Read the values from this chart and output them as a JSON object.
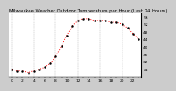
{
  "title": "Milwaukee Weather Outdoor Temperature per Hour (Last 24 Hours)",
  "temperatures": [
    28,
    27,
    27,
    26,
    27,
    28,
    29,
    31,
    35,
    40,
    46,
    51,
    54,
    55,
    55,
    54,
    54,
    54,
    53,
    53,
    52,
    50,
    47,
    44
  ],
  "hours": [
    0,
    1,
    2,
    3,
    4,
    5,
    6,
    7,
    8,
    9,
    10,
    11,
    12,
    13,
    14,
    15,
    16,
    17,
    18,
    19,
    20,
    21,
    22,
    23
  ],
  "line_color": "#ff0000",
  "marker_color": "#000000",
  "bg_color": "#cccccc",
  "plot_bg_color": "#ffffff",
  "grid_color": "#888888",
  "ylim": [
    24,
    58
  ],
  "ytick_values": [
    28,
    32,
    36,
    40,
    44,
    48,
    52,
    56
  ],
  "title_fontsize": 3.8,
  "tick_fontsize": 3.2
}
